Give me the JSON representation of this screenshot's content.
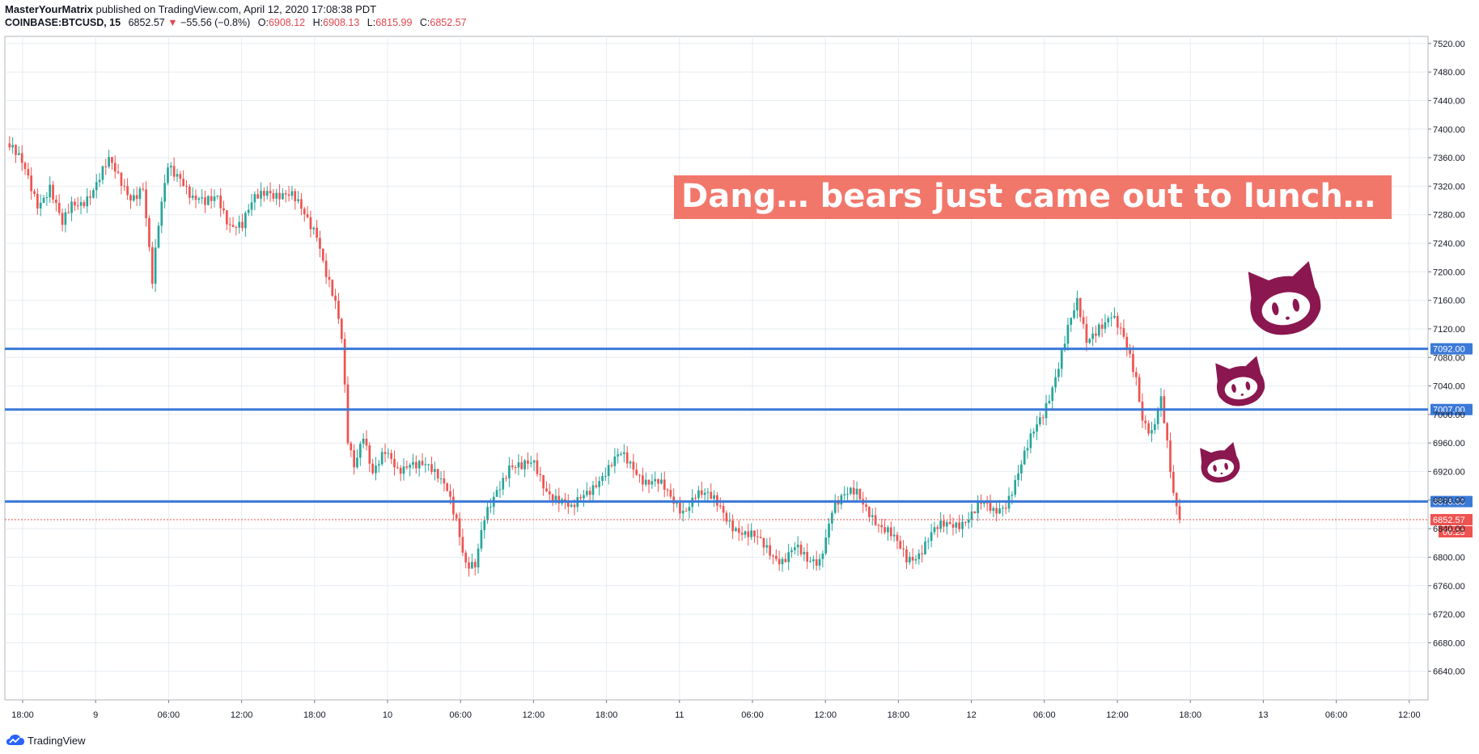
{
  "header": {
    "author": "MasterYourMatrix",
    "published": "published on TradingView.com, April 12, 2020 17:08:38 PDT",
    "symbol": "COINBASE:BTCUSD, 15",
    "last": "6852.57",
    "change": "−55.56 (−0.8%)",
    "open_label": "O:",
    "open": "6908.12",
    "high_label": "H:",
    "high": "6908.13",
    "low_label": "L:",
    "low": "6815.99",
    "close_label": "C:",
    "close": "6852.57"
  },
  "footer": {
    "brand": "TradingView"
  },
  "colors": {
    "up": "#26a69a",
    "down": "#ef5350",
    "level_line": "#3a79d8",
    "annotation_bg": "#f2776b",
    "mascot": "#8b1750",
    "grid": "#e6ecf1"
  },
  "icons": [
    "tradingview-cloud-icon",
    "octocat-icon"
  ],
  "chart_data": {
    "type": "candlestick",
    "interval": "15",
    "ylim": [
      6600,
      7530
    ],
    "y_ticks": [
      "7520.00",
      "7480.00",
      "7440.00",
      "7400.00",
      "7360.00",
      "7320.00",
      "7280.00",
      "7240.00",
      "7200.00",
      "7160.00",
      "7120.00",
      "7080.00",
      "7040.00",
      "7000.00",
      "6960.00",
      "6920.00",
      "6880.00",
      "6840.00",
      "6800.00",
      "6760.00",
      "6720.00",
      "6680.00",
      "6640.00"
    ],
    "x_ticks": [
      "18:00",
      "9",
      "06:00",
      "12:00",
      "18:00",
      "10",
      "06:00",
      "12:00",
      "18:00",
      "11",
      "06:00",
      "12:00",
      "18:00",
      "12",
      "06:00",
      "12:00",
      "18:00",
      "13",
      "06:00",
      "12:00"
    ],
    "price_path": [
      [
        0,
        7380
      ],
      [
        6,
        7340
      ],
      [
        10,
        7300
      ],
      [
        14,
        7320
      ],
      [
        18,
        7260
      ],
      [
        21,
        7290
      ],
      [
        24,
        7300
      ],
      [
        28,
        7320
      ],
      [
        33,
        7350
      ],
      [
        36,
        7330
      ],
      [
        40,
        7310
      ],
      [
        44,
        7320
      ],
      [
        47,
        7180
      ],
      [
        49,
        7260
      ],
      [
        52,
        7350
      ],
      [
        56,
        7340
      ],
      [
        60,
        7300
      ],
      [
        64,
        7290
      ],
      [
        68,
        7310
      ],
      [
        72,
        7270
      ],
      [
        76,
        7260
      ],
      [
        80,
        7300
      ],
      [
        84,
        7320
      ],
      [
        88,
        7310
      ],
      [
        92,
        7300
      ],
      [
        96,
        7280
      ],
      [
        100,
        7260
      ],
      [
        103,
        7200
      ],
      [
        106,
        7150
      ],
      [
        108,
        7100
      ],
      [
        110,
        6960
      ],
      [
        112,
        6930
      ],
      [
        115,
        6980
      ],
      [
        118,
        6920
      ],
      [
        122,
        6940
      ],
      [
        126,
        6920
      ],
      [
        130,
        6940
      ],
      [
        134,
        6930
      ],
      [
        138,
        6910
      ],
      [
        142,
        6900
      ],
      [
        145,
        6860
      ],
      [
        148,
        6790
      ],
      [
        151,
        6780
      ],
      [
        154,
        6850
      ],
      [
        158,
        6900
      ],
      [
        162,
        6930
      ],
      [
        166,
        6920
      ],
      [
        170,
        6930
      ],
      [
        174,
        6900
      ],
      [
        178,
        6880
      ],
      [
        182,
        6860
      ],
      [
        186,
        6890
      ],
      [
        190,
        6910
      ],
      [
        194,
        6920
      ],
      [
        198,
        6940
      ],
      [
        202,
        6930
      ],
      [
        206,
        6910
      ],
      [
        210,
        6900
      ],
      [
        214,
        6880
      ],
      [
        218,
        6870
      ],
      [
        222,
        6890
      ],
      [
        226,
        6880
      ],
      [
        230,
        6870
      ],
      [
        234,
        6850
      ],
      [
        238,
        6830
      ],
      [
        242,
        6820
      ],
      [
        246,
        6810
      ],
      [
        250,
        6800
      ],
      [
        254,
        6810
      ],
      [
        258,
        6790
      ],
      [
        262,
        6800
      ],
      [
        266,
        6870
      ],
      [
        270,
        6880
      ],
      [
        274,
        6890
      ],
      [
        278,
        6870
      ],
      [
        282,
        6840
      ],
      [
        286,
        6820
      ],
      [
        290,
        6800
      ],
      [
        294,
        6810
      ],
      [
        298,
        6830
      ],
      [
        302,
        6840
      ],
      [
        306,
        6850
      ],
      [
        310,
        6860
      ],
      [
        314,
        6870
      ],
      [
        318,
        6860
      ],
      [
        322,
        6880
      ],
      [
        326,
        6920
      ],
      [
        330,
        6960
      ],
      [
        334,
        7000
      ],
      [
        338,
        7060
      ],
      [
        342,
        7120
      ],
      [
        345,
        7150
      ],
      [
        348,
        7100
      ],
      [
        352,
        7130
      ],
      [
        356,
        7140
      ],
      [
        360,
        7100
      ],
      [
        364,
        7050
      ],
      [
        366,
        7000
      ],
      [
        369,
        6980
      ],
      [
        372,
        7020
      ],
      [
        374,
        6950
      ],
      [
        376,
        6880
      ],
      [
        378,
        6852.57
      ]
    ],
    "levels": [
      {
        "name": "resistance-top",
        "value": 7092.0,
        "label": "7092.00"
      },
      {
        "name": "resistance-mid",
        "value": 7007.0,
        "label": "7007.00"
      },
      {
        "name": "support",
        "value": 6878.0,
        "label": "6878.00"
      }
    ],
    "last_price": {
      "value": 6852.57,
      "label": "6852.57",
      "countdown": "06:23"
    },
    "annotation": "Dang… bears just came out to lunch…",
    "grid": true
  }
}
